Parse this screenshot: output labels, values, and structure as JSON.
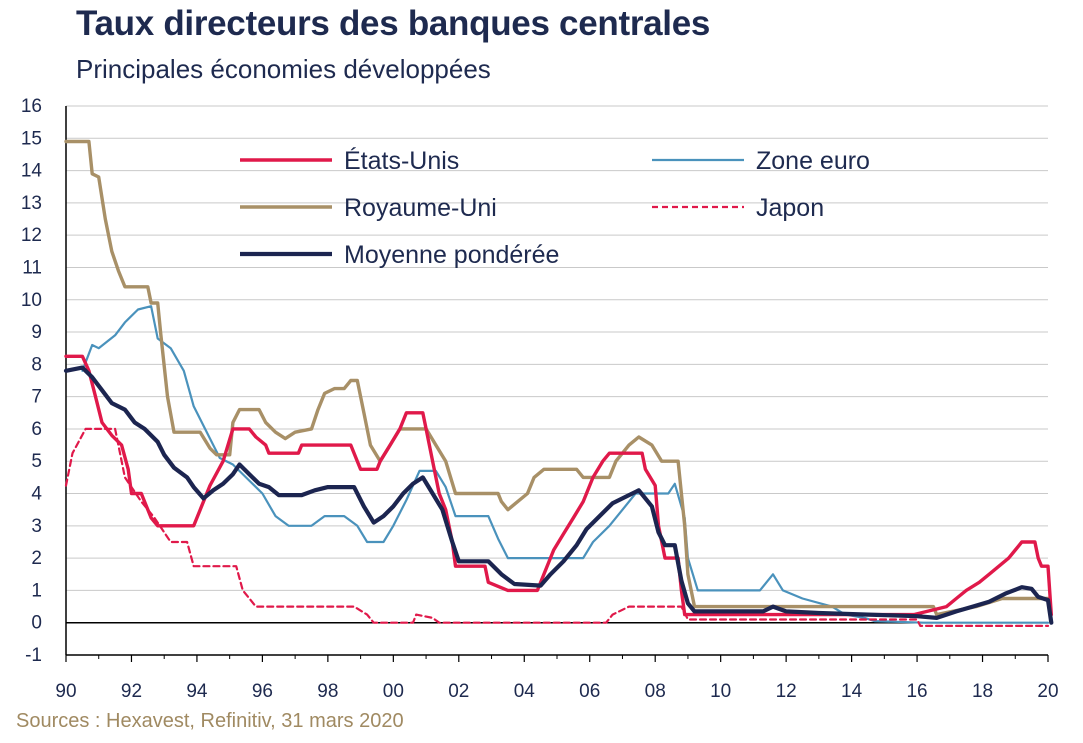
{
  "title": "Taux directeurs des banques centrales",
  "subtitle": "Principales économies développées",
  "source": "Sources : Hexavest, Refinitiv, 31 mars 2020",
  "chart_data": {
    "type": "line",
    "title": "Taux directeurs des banques centrales",
    "subtitle": "Principales économies développées",
    "xlabel": "",
    "ylabel": "",
    "xlim": [
      1990,
      2020
    ],
    "ylim": [
      -1,
      16
    ],
    "yticks": [
      -1,
      0,
      1,
      2,
      3,
      4,
      5,
      6,
      7,
      8,
      9,
      10,
      11,
      12,
      13,
      14,
      15,
      16
    ],
    "xticks": [
      1990,
      1992,
      1994,
      1996,
      1998,
      2000,
      2002,
      2004,
      2006,
      2008,
      2010,
      2012,
      2014,
      2016,
      2018,
      2020
    ],
    "xtick_labels": [
      "90",
      "92",
      "94",
      "96",
      "98",
      "00",
      "02",
      "04",
      "06",
      "08",
      "10",
      "12",
      "14",
      "16",
      "18",
      "20"
    ],
    "grid": "horizontal",
    "legend_position": "top-center",
    "series": [
      {
        "name": "Zone euro",
        "color": "#4a92bc",
        "style": "solid",
        "points": [
          [
            1990.5,
            7.8
          ],
          [
            1990.8,
            8.6
          ],
          [
            1991,
            8.5
          ],
          [
            1991.5,
            8.9
          ],
          [
            1991.8,
            9.3
          ],
          [
            1992.2,
            9.7
          ],
          [
            1992.6,
            9.8
          ],
          [
            1992.8,
            8.8
          ],
          [
            1993.2,
            8.5
          ],
          [
            1993.6,
            7.8
          ],
          [
            1993.9,
            6.7
          ],
          [
            1994.3,
            5.9
          ],
          [
            1994.7,
            5.1
          ],
          [
            1995.1,
            4.9
          ],
          [
            1995.6,
            4.4
          ],
          [
            1996.0,
            4.0
          ],
          [
            1996.4,
            3.3
          ],
          [
            1996.8,
            3.0
          ],
          [
            1997.5,
            3.0
          ],
          [
            1997.9,
            3.3
          ],
          [
            1998.5,
            3.3
          ],
          [
            1998.9,
            3.0
          ],
          [
            1999.2,
            2.5
          ],
          [
            1999.7,
            2.5
          ],
          [
            2000.0,
            3.0
          ],
          [
            2000.4,
            3.8
          ],
          [
            2000.8,
            4.7
          ],
          [
            2001.3,
            4.7
          ],
          [
            2001.6,
            4.2
          ],
          [
            2001.9,
            3.3
          ],
          [
            2002.9,
            3.3
          ],
          [
            2003.2,
            2.6
          ],
          [
            2003.5,
            2.0
          ],
          [
            2005.8,
            2.0
          ],
          [
            2006.1,
            2.5
          ],
          [
            2006.6,
            3.0
          ],
          [
            2007.0,
            3.5
          ],
          [
            2007.4,
            4.0
          ],
          [
            2008.4,
            4.0
          ],
          [
            2008.6,
            4.3
          ],
          [
            2008.9,
            3.25
          ],
          [
            2009.0,
            2.0
          ],
          [
            2009.3,
            1.0
          ],
          [
            2011.2,
            1.0
          ],
          [
            2011.4,
            1.25
          ],
          [
            2011.6,
            1.5
          ],
          [
            2011.9,
            1.0
          ],
          [
            2012.5,
            0.75
          ],
          [
            2013.4,
            0.5
          ],
          [
            2013.8,
            0.25
          ],
          [
            2014.4,
            0.15
          ],
          [
            2014.7,
            0.05
          ],
          [
            2016.2,
            0.0
          ],
          [
            2020.0,
            0.0
          ]
        ]
      },
      {
        "name": "Japon",
        "color": "#e0194a",
        "style": "dashed",
        "points": [
          [
            1990.0,
            4.25
          ],
          [
            1990.2,
            5.25
          ],
          [
            1990.6,
            6.0
          ],
          [
            1991.5,
            6.0
          ],
          [
            1991.8,
            4.5
          ],
          [
            1992.3,
            3.75
          ],
          [
            1992.7,
            3.25
          ],
          [
            1993.2,
            2.5
          ],
          [
            1993.7,
            2.5
          ],
          [
            1993.9,
            1.75
          ],
          [
            1995.2,
            1.75
          ],
          [
            1995.4,
            1.0
          ],
          [
            1995.8,
            0.5
          ],
          [
            1998.8,
            0.5
          ],
          [
            1999.2,
            0.25
          ],
          [
            1999.4,
            0.0
          ],
          [
            2000.6,
            0.0
          ],
          [
            2000.7,
            0.25
          ],
          [
            2001.2,
            0.15
          ],
          [
            2001.4,
            0.0
          ],
          [
            2006.5,
            0.0
          ],
          [
            2006.7,
            0.25
          ],
          [
            2007.2,
            0.5
          ],
          [
            2008.8,
            0.5
          ],
          [
            2008.9,
            0.3
          ],
          [
            2009.0,
            0.1
          ],
          [
            2016.0,
            0.1
          ],
          [
            2016.1,
            -0.1
          ],
          [
            2020.0,
            -0.1
          ]
        ]
      },
      {
        "name": "Royaume-Uni",
        "color": "#a89067",
        "style": "solid",
        "points": [
          [
            1990.0,
            14.9
          ],
          [
            1990.7,
            14.9
          ],
          [
            1990.8,
            13.9
          ],
          [
            1991.0,
            13.8
          ],
          [
            1991.2,
            12.5
          ],
          [
            1991.4,
            11.5
          ],
          [
            1991.6,
            10.9
          ],
          [
            1991.8,
            10.4
          ],
          [
            1992.5,
            10.4
          ],
          [
            1992.6,
            9.9
          ],
          [
            1992.8,
            9.9
          ],
          [
            1992.9,
            8.9
          ],
          [
            1993.1,
            7.0
          ],
          [
            1993.3,
            5.9
          ],
          [
            1994.1,
            5.9
          ],
          [
            1994.4,
            5.4
          ],
          [
            1994.6,
            5.2
          ],
          [
            1995.0,
            5.2
          ],
          [
            1995.1,
            6.2
          ],
          [
            1995.3,
            6.6
          ],
          [
            1995.9,
            6.6
          ],
          [
            1996.1,
            6.2
          ],
          [
            1996.4,
            5.9
          ],
          [
            1996.7,
            5.7
          ],
          [
            1997.0,
            5.9
          ],
          [
            1997.5,
            6.0
          ],
          [
            1997.7,
            6.6
          ],
          [
            1997.9,
            7.1
          ],
          [
            1998.2,
            7.25
          ],
          [
            1998.5,
            7.25
          ],
          [
            1998.7,
            7.5
          ],
          [
            1998.9,
            7.5
          ],
          [
            1999.1,
            6.5
          ],
          [
            1999.3,
            5.5
          ],
          [
            1999.6,
            5.0
          ],
          [
            1999.9,
            5.5
          ],
          [
            2000.2,
            6.0
          ],
          [
            2001.0,
            6.0
          ],
          [
            2001.3,
            5.5
          ],
          [
            2001.6,
            5.0
          ],
          [
            2001.9,
            4.0
          ],
          [
            2003.2,
            4.0
          ],
          [
            2003.3,
            3.75
          ],
          [
            2003.5,
            3.5
          ],
          [
            2003.8,
            3.75
          ],
          [
            2004.1,
            4.0
          ],
          [
            2004.3,
            4.5
          ],
          [
            2004.6,
            4.75
          ],
          [
            2005.6,
            4.75
          ],
          [
            2005.8,
            4.5
          ],
          [
            2006.6,
            4.5
          ],
          [
            2006.8,
            5.0
          ],
          [
            2007.2,
            5.5
          ],
          [
            2007.5,
            5.75
          ],
          [
            2007.9,
            5.5
          ],
          [
            2008.2,
            5.0
          ],
          [
            2008.7,
            5.0
          ],
          [
            2008.9,
            3.0
          ],
          [
            2009.0,
            1.5
          ],
          [
            2009.2,
            0.5
          ],
          [
            2016.5,
            0.5
          ],
          [
            2016.6,
            0.25
          ],
          [
            2017.8,
            0.5
          ],
          [
            2018.6,
            0.75
          ],
          [
            2020.0,
            0.75
          ]
        ]
      },
      {
        "name": "États-Unis",
        "color": "#e0194a",
        "style": "solid",
        "points": [
          [
            1990.0,
            8.25
          ],
          [
            1990.5,
            8.25
          ],
          [
            1990.7,
            7.8
          ],
          [
            1990.9,
            7.0
          ],
          [
            1991.1,
            6.2
          ],
          [
            1991.4,
            5.8
          ],
          [
            1991.7,
            5.5
          ],
          [
            1991.9,
            4.75
          ],
          [
            1992.0,
            4.0
          ],
          [
            1992.3,
            4.0
          ],
          [
            1992.6,
            3.25
          ],
          [
            1992.8,
            3.0
          ],
          [
            1993.9,
            3.0
          ],
          [
            1994.1,
            3.5
          ],
          [
            1994.4,
            4.25
          ],
          [
            1994.8,
            5.0
          ],
          [
            1995.1,
            6.0
          ],
          [
            1995.6,
            6.0
          ],
          [
            1995.8,
            5.75
          ],
          [
            1996.1,
            5.5
          ],
          [
            1996.2,
            5.25
          ],
          [
            1997.1,
            5.25
          ],
          [
            1997.2,
            5.5
          ],
          [
            1998.7,
            5.5
          ],
          [
            1998.9,
            5.0
          ],
          [
            1999.0,
            4.75
          ],
          [
            1999.5,
            4.75
          ],
          [
            1999.6,
            5.0
          ],
          [
            1999.9,
            5.5
          ],
          [
            2000.2,
            6.0
          ],
          [
            2000.4,
            6.5
          ],
          [
            2000.9,
            6.5
          ],
          [
            2001.0,
            6.0
          ],
          [
            2001.2,
            5.0
          ],
          [
            2001.4,
            4.0
          ],
          [
            2001.6,
            3.5
          ],
          [
            2001.8,
            2.5
          ],
          [
            2001.9,
            1.75
          ],
          [
            2002.8,
            1.75
          ],
          [
            2002.9,
            1.25
          ],
          [
            2003.5,
            1.0
          ],
          [
            2004.4,
            1.0
          ],
          [
            2004.6,
            1.5
          ],
          [
            2004.9,
            2.25
          ],
          [
            2005.2,
            2.75
          ],
          [
            2005.5,
            3.25
          ],
          [
            2005.8,
            3.75
          ],
          [
            2006.1,
            4.5
          ],
          [
            2006.4,
            5.0
          ],
          [
            2006.6,
            5.25
          ],
          [
            2007.6,
            5.25
          ],
          [
            2007.7,
            4.75
          ],
          [
            2008.0,
            4.25
          ],
          [
            2008.1,
            3.0
          ],
          [
            2008.3,
            2.0
          ],
          [
            2008.7,
            2.0
          ],
          [
            2008.8,
            1.0
          ],
          [
            2008.9,
            0.25
          ],
          [
            2015.9,
            0.25
          ],
          [
            2016.9,
            0.5
          ],
          [
            2017.2,
            0.75
          ],
          [
            2017.5,
            1.0
          ],
          [
            2017.9,
            1.25
          ],
          [
            2018.2,
            1.5
          ],
          [
            2018.5,
            1.75
          ],
          [
            2018.8,
            2.0
          ],
          [
            2019.0,
            2.25
          ],
          [
            2019.2,
            2.5
          ],
          [
            2019.6,
            2.5
          ],
          [
            2019.7,
            2.0
          ],
          [
            2019.8,
            1.75
          ],
          [
            2020.0,
            1.75
          ],
          [
            2020.1,
            0.25
          ]
        ]
      },
      {
        "name": "Moyenne pondérée",
        "color": "#1c2550",
        "style": "solid-thick",
        "points": [
          [
            1990.0,
            7.8
          ],
          [
            1990.5,
            7.9
          ],
          [
            1990.8,
            7.6
          ],
          [
            1991.1,
            7.2
          ],
          [
            1991.4,
            6.8
          ],
          [
            1991.8,
            6.6
          ],
          [
            1992.1,
            6.2
          ],
          [
            1992.4,
            6.0
          ],
          [
            1992.8,
            5.6
          ],
          [
            1993.0,
            5.2
          ],
          [
            1993.3,
            4.8
          ],
          [
            1993.7,
            4.5
          ],
          [
            1993.9,
            4.2
          ],
          [
            1994.2,
            3.85
          ],
          [
            1994.5,
            4.1
          ],
          [
            1994.8,
            4.3
          ],
          [
            1995.1,
            4.6
          ],
          [
            1995.3,
            4.9
          ],
          [
            1995.6,
            4.6
          ],
          [
            1995.9,
            4.3
          ],
          [
            1996.2,
            4.2
          ],
          [
            1996.5,
            3.95
          ],
          [
            1997.2,
            3.95
          ],
          [
            1997.6,
            4.1
          ],
          [
            1998.0,
            4.2
          ],
          [
            1998.8,
            4.2
          ],
          [
            1999.1,
            3.6
          ],
          [
            1999.4,
            3.1
          ],
          [
            1999.7,
            3.3
          ],
          [
            2000.0,
            3.6
          ],
          [
            2000.3,
            4.0
          ],
          [
            2000.6,
            4.3
          ],
          [
            2000.9,
            4.5
          ],
          [
            2001.2,
            4.0
          ],
          [
            2001.5,
            3.5
          ],
          [
            2001.8,
            2.5
          ],
          [
            2002.0,
            1.9
          ],
          [
            2002.9,
            1.9
          ],
          [
            2003.3,
            1.5
          ],
          [
            2003.7,
            1.2
          ],
          [
            2004.5,
            1.15
          ],
          [
            2004.8,
            1.5
          ],
          [
            2005.2,
            1.9
          ],
          [
            2005.6,
            2.4
          ],
          [
            2005.9,
            2.9
          ],
          [
            2006.3,
            3.3
          ],
          [
            2006.7,
            3.7
          ],
          [
            2007.1,
            3.9
          ],
          [
            2007.5,
            4.1
          ],
          [
            2007.9,
            3.6
          ],
          [
            2008.1,
            2.8
          ],
          [
            2008.3,
            2.4
          ],
          [
            2008.6,
            2.4
          ],
          [
            2008.8,
            1.3
          ],
          [
            2009.0,
            0.6
          ],
          [
            2009.2,
            0.35
          ],
          [
            2011.0,
            0.35
          ],
          [
            2011.3,
            0.35
          ],
          [
            2011.6,
            0.5
          ],
          [
            2012.0,
            0.35
          ],
          [
            2013.0,
            0.3
          ],
          [
            2014.5,
            0.25
          ],
          [
            2016.0,
            0.2
          ],
          [
            2016.6,
            0.15
          ],
          [
            2017.2,
            0.35
          ],
          [
            2017.7,
            0.5
          ],
          [
            2018.2,
            0.65
          ],
          [
            2018.7,
            0.9
          ],
          [
            2019.2,
            1.1
          ],
          [
            2019.5,
            1.05
          ],
          [
            2019.7,
            0.8
          ],
          [
            2020.0,
            0.7
          ],
          [
            2020.1,
            0.0
          ]
        ]
      }
    ]
  }
}
